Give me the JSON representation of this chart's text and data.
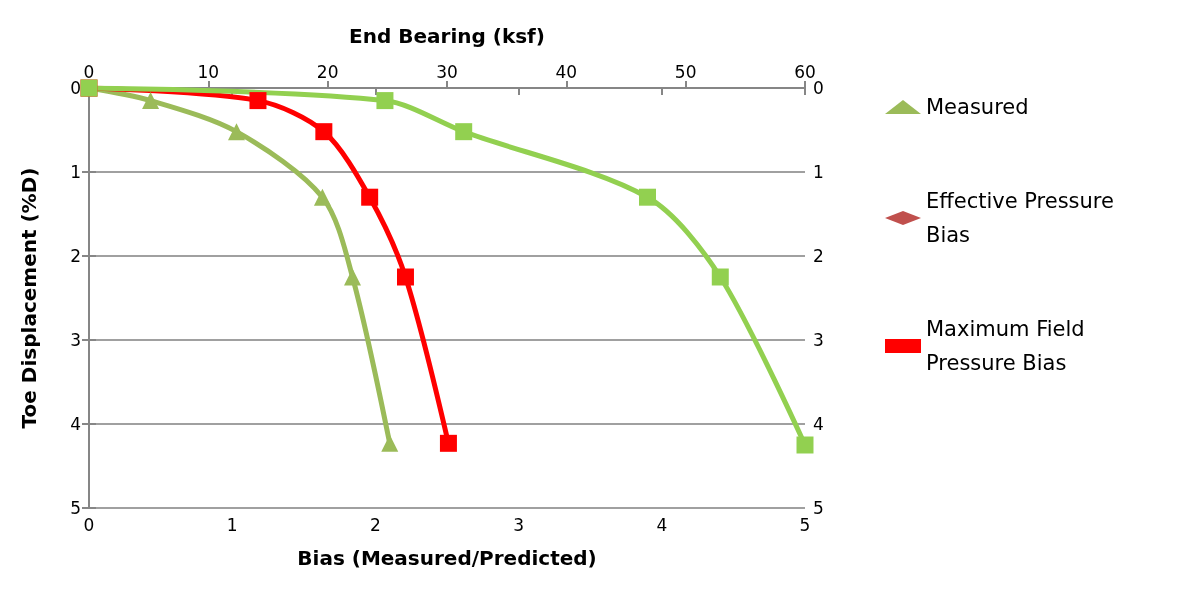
{
  "chart_data": {
    "type": "line",
    "xlabel": "Bias (Measured/Predicted)",
    "x2label": "End Bearing (ksf)",
    "ylabel": "Toe Displacement (%D)",
    "xlim": [
      0,
      5
    ],
    "xticks": [
      0,
      1,
      2,
      3,
      4,
      5
    ],
    "x2lim": [
      0,
      60
    ],
    "x2ticks": [
      0,
      10,
      20,
      30,
      40,
      50,
      60
    ],
    "ylim": [
      5,
      0
    ],
    "yticks": [
      0,
      1,
      2,
      3,
      4,
      5
    ],
    "y2lim": [
      5,
      0
    ],
    "y2ticks": [
      0,
      1,
      2,
      3,
      4,
      5
    ],
    "grid": "y",
    "legend": "right",
    "line_style": "solid",
    "series": [
      {
        "name": "Measured",
        "color": "#9bbb59",
        "marker": "triangle",
        "x": [
          0,
          0.43,
          1.03,
          1.63,
          1.84,
          2.1
        ],
        "values": [
          0,
          0.15,
          0.52,
          1.3,
          2.25,
          4.23
        ]
      },
      {
        "name": "Effective Pressure Bias",
        "color": "#c0504d",
        "marker": "diamond"
      },
      {
        "name": "Maximum Field Pressure Bias",
        "color": "#ff0000",
        "marker": "square",
        "x": [
          0,
          1.18,
          1.64,
          1.96,
          2.21,
          2.51
        ],
        "values": [
          0,
          0.15,
          0.52,
          1.3,
          2.25,
          4.23
        ]
      },
      {
        "color": "#92d050",
        "marker": "square",
        "axis": "x2",
        "x": [
          0,
          24.8,
          31.4,
          46.8,
          52.9,
          60
        ],
        "values": [
          0,
          0.15,
          0.52,
          1.3,
          2.25,
          4.25
        ]
      }
    ]
  }
}
